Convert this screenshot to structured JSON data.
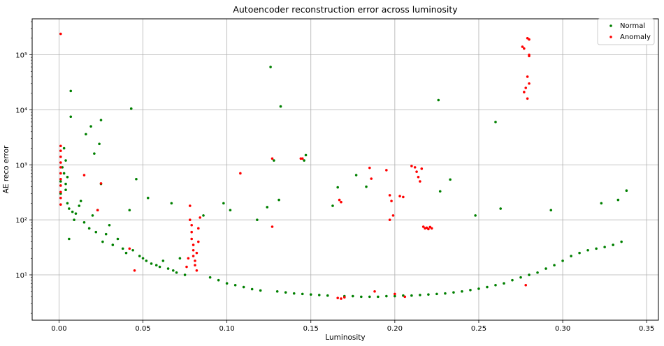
{
  "chart_data": {
    "type": "scatter",
    "title": "Autoencoder reconstruction error across luminosity",
    "xlabel": "Luminosity",
    "ylabel": "AE reco error",
    "x_scale": "linear",
    "y_scale": "log",
    "xlim": [
      -0.016,
      0.357
    ],
    "ylim": [
      1.5,
      450000
    ],
    "x_ticks": [
      0.0,
      0.05,
      0.1,
      0.15,
      0.2,
      0.25,
      0.3,
      0.35
    ],
    "x_tick_labels": [
      "0.00",
      "0.05",
      "0.10",
      "0.15",
      "0.20",
      "0.25",
      "0.30",
      "0.35"
    ],
    "y_ticks": [
      10,
      100,
      1000,
      10000,
      100000
    ],
    "y_tick_labels": [
      "10¹",
      "10²",
      "10³",
      "10⁴",
      "10⁵"
    ],
    "grid": true,
    "legend_position": "top-right",
    "series": [
      {
        "name": "Normal",
        "color": "#008000",
        "points": [
          [
            0.001,
            300
          ],
          [
            0.001,
            500
          ],
          [
            0.002,
            900
          ],
          [
            0.003,
            2000
          ],
          [
            0.004,
            1200
          ],
          [
            0.003,
            700
          ],
          [
            0.004,
            450
          ],
          [
            0.005,
            600
          ],
          [
            0.004,
            350
          ],
          [
            0.006,
            160
          ],
          [
            0.005,
            200
          ],
          [
            0.007,
            22000
          ],
          [
            0.007,
            7500
          ],
          [
            0.006,
            45
          ],
          [
            0.008,
            140
          ],
          [
            0.009,
            100
          ],
          [
            0.01,
            130
          ],
          [
            0.012,
            180
          ],
          [
            0.013,
            220
          ],
          [
            0.015,
            90
          ],
          [
            0.016,
            3600
          ],
          [
            0.018,
            70
          ],
          [
            0.019,
            5000
          ],
          [
            0.02,
            120
          ],
          [
            0.021,
            1600
          ],
          [
            0.022,
            60
          ],
          [
            0.023,
            150
          ],
          [
            0.024,
            2400
          ],
          [
            0.025,
            6500
          ],
          [
            0.025,
            450
          ],
          [
            0.026,
            40
          ],
          [
            0.028,
            55
          ],
          [
            0.03,
            80
          ],
          [
            0.032,
            35
          ],
          [
            0.035,
            45
          ],
          [
            0.038,
            30
          ],
          [
            0.04,
            25
          ],
          [
            0.042,
            150
          ],
          [
            0.043,
            10500
          ],
          [
            0.044,
            28
          ],
          [
            0.046,
            550
          ],
          [
            0.048,
            22
          ],
          [
            0.05,
            20
          ],
          [
            0.052,
            18
          ],
          [
            0.053,
            250
          ],
          [
            0.055,
            16
          ],
          [
            0.058,
            15
          ],
          [
            0.06,
            14
          ],
          [
            0.062,
            18
          ],
          [
            0.065,
            13
          ],
          [
            0.067,
            200
          ],
          [
            0.068,
            12
          ],
          [
            0.07,
            11
          ],
          [
            0.072,
            20
          ],
          [
            0.075,
            10
          ],
          [
            0.086,
            120
          ],
          [
            0.09,
            9
          ],
          [
            0.095,
            8
          ],
          [
            0.098,
            200
          ],
          [
            0.1,
            7
          ],
          [
            0.102,
            150
          ],
          [
            0.105,
            6.5
          ],
          [
            0.11,
            6
          ],
          [
            0.115,
            5.5
          ],
          [
            0.118,
            100
          ],
          [
            0.12,
            5.2
          ],
          [
            0.124,
            170
          ],
          [
            0.126,
            60000
          ],
          [
            0.128,
            1200
          ],
          [
            0.13,
            5
          ],
          [
            0.131,
            230
          ],
          [
            0.132,
            11500
          ],
          [
            0.135,
            4.8
          ],
          [
            0.14,
            4.6
          ],
          [
            0.145,
            4.5
          ],
          [
            0.146,
            1200
          ],
          [
            0.147,
            1500
          ],
          [
            0.15,
            4.4
          ],
          [
            0.155,
            4.3
          ],
          [
            0.16,
            4.2
          ],
          [
            0.163,
            180
          ],
          [
            0.166,
            390
          ],
          [
            0.17,
            4.1
          ],
          [
            0.175,
            4.1
          ],
          [
            0.177,
            650
          ],
          [
            0.18,
            4.0
          ],
          [
            0.183,
            400
          ],
          [
            0.185,
            4.0
          ],
          [
            0.19,
            4.0
          ],
          [
            0.195,
            4.1
          ],
          [
            0.2,
            4.1
          ],
          [
            0.205,
            4.2
          ],
          [
            0.21,
            4.2
          ],
          [
            0.215,
            4.3
          ],
          [
            0.22,
            4.4
          ],
          [
            0.225,
            4.5
          ],
          [
            0.226,
            15000
          ],
          [
            0.227,
            330
          ],
          [
            0.23,
            4.6
          ],
          [
            0.233,
            540
          ],
          [
            0.235,
            4.8
          ],
          [
            0.24,
            5
          ],
          [
            0.245,
            5.3
          ],
          [
            0.248,
            120
          ],
          [
            0.25,
            5.6
          ],
          [
            0.255,
            6
          ],
          [
            0.26,
            6.5
          ],
          [
            0.26,
            6000
          ],
          [
            0.263,
            160
          ],
          [
            0.265,
            7
          ],
          [
            0.27,
            8
          ],
          [
            0.275,
            9
          ],
          [
            0.28,
            10
          ],
          [
            0.285,
            11
          ],
          [
            0.29,
            13
          ],
          [
            0.293,
            150
          ],
          [
            0.295,
            15
          ],
          [
            0.3,
            18
          ],
          [
            0.305,
            22
          ],
          [
            0.31,
            25
          ],
          [
            0.315,
            28
          ],
          [
            0.32,
            30
          ],
          [
            0.323,
            200
          ],
          [
            0.325,
            32
          ],
          [
            0.33,
            35
          ],
          [
            0.333,
            230
          ],
          [
            0.335,
            40
          ],
          [
            0.338,
            340
          ]
        ]
      },
      {
        "name": "Anomaly",
        "color": "#ff0000",
        "points": [
          [
            0.001,
            240000
          ],
          [
            0.001,
            2200
          ],
          [
            0.001,
            1800
          ],
          [
            0.001,
            1400
          ],
          [
            0.001,
            1100
          ],
          [
            0.001,
            900
          ],
          [
            0.001,
            700
          ],
          [
            0.001,
            550
          ],
          [
            0.001,
            420
          ],
          [
            0.001,
            320
          ],
          [
            0.001,
            250
          ],
          [
            0.001,
            190
          ],
          [
            0.015,
            650
          ],
          [
            0.023,
            150
          ],
          [
            0.025,
            460
          ],
          [
            0.042,
            30
          ],
          [
            0.045,
            12
          ],
          [
            0.078,
            180
          ],
          [
            0.078,
            100
          ],
          [
            0.079,
            80
          ],
          [
            0.079,
            60
          ],
          [
            0.079,
            45
          ],
          [
            0.08,
            35
          ],
          [
            0.08,
            28
          ],
          [
            0.08,
            22
          ],
          [
            0.081,
            18
          ],
          [
            0.081,
            15
          ],
          [
            0.082,
            12
          ],
          [
            0.082,
            25
          ],
          [
            0.083,
            40
          ],
          [
            0.083,
            70
          ],
          [
            0.084,
            110
          ],
          [
            0.077,
            20
          ],
          [
            0.076,
            14
          ],
          [
            0.108,
            700
          ],
          [
            0.127,
            1300
          ],
          [
            0.127,
            75
          ],
          [
            0.144,
            1300
          ],
          [
            0.145,
            1300
          ],
          [
            0.167,
            230
          ],
          [
            0.168,
            210
          ],
          [
            0.166,
            3.8
          ],
          [
            0.168,
            3.7
          ],
          [
            0.17,
            3.9
          ],
          [
            0.185,
            880
          ],
          [
            0.186,
            560
          ],
          [
            0.188,
            5.0
          ],
          [
            0.195,
            800
          ],
          [
            0.197,
            280
          ],
          [
            0.198,
            220
          ],
          [
            0.199,
            120
          ],
          [
            0.197,
            100
          ],
          [
            0.2,
            4.5
          ],
          [
            0.203,
            270
          ],
          [
            0.205,
            260
          ],
          [
            0.206,
            4.0
          ],
          [
            0.21,
            950
          ],
          [
            0.212,
            900
          ],
          [
            0.213,
            750
          ],
          [
            0.214,
            600
          ],
          [
            0.215,
            500
          ],
          [
            0.216,
            850
          ],
          [
            0.217,
            75
          ],
          [
            0.218,
            70
          ],
          [
            0.219,
            72
          ],
          [
            0.22,
            68
          ],
          [
            0.221,
            74
          ],
          [
            0.222,
            70
          ],
          [
            0.276,
            140000
          ],
          [
            0.277,
            130000
          ],
          [
            0.279,
            200000
          ],
          [
            0.28,
            190000
          ],
          [
            0.28,
            100000
          ],
          [
            0.28,
            95000
          ],
          [
            0.279,
            40000
          ],
          [
            0.28,
            30000
          ],
          [
            0.278,
            25000
          ],
          [
            0.277,
            21000
          ],
          [
            0.279,
            16000
          ],
          [
            0.278,
            6.5
          ]
        ]
      }
    ]
  }
}
